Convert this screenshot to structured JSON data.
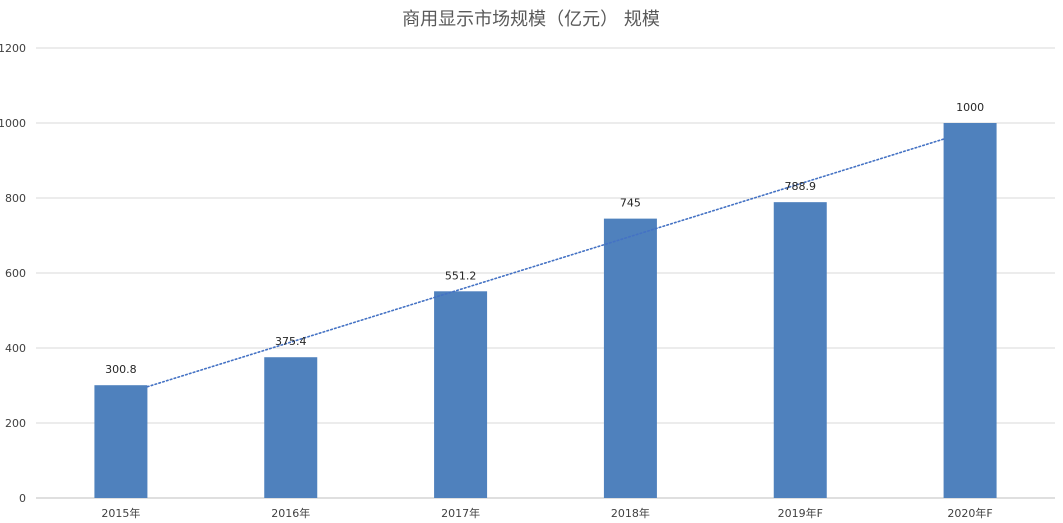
{
  "chart_data": {
    "type": "bar",
    "title": "商用显示市场规模（亿元） 规模",
    "categories": [
      "2015年",
      "2016年",
      "2017年",
      "2018年",
      "2019年F",
      "2020年F"
    ],
    "series": [
      {
        "values": [
          300.8,
          375.4,
          551.2,
          745,
          788.9,
          1000
        ],
        "data_labels": [
          "300.8",
          "375.4",
          "551.2",
          "745",
          "788.9",
          "1000"
        ]
      }
    ],
    "trendline": {
      "type": "linear",
      "style": "dotted"
    },
    "ylim": [
      0,
      1200
    ],
    "yticks": [
      0,
      200,
      400,
      600,
      800,
      1000,
      1200
    ],
    "ytick_labels": [
      "0",
      "200",
      "400",
      "600",
      "800",
      "1000",
      "1200"
    ],
    "grid": true,
    "legend": "none",
    "colors": {
      "bar": "#4F81BD",
      "trendline": "#4472C4",
      "grid": "#D9D9D9",
      "axis": "#BFBFBF",
      "title": "#595959",
      "tick": "#404040",
      "data_label": "#262626"
    }
  }
}
